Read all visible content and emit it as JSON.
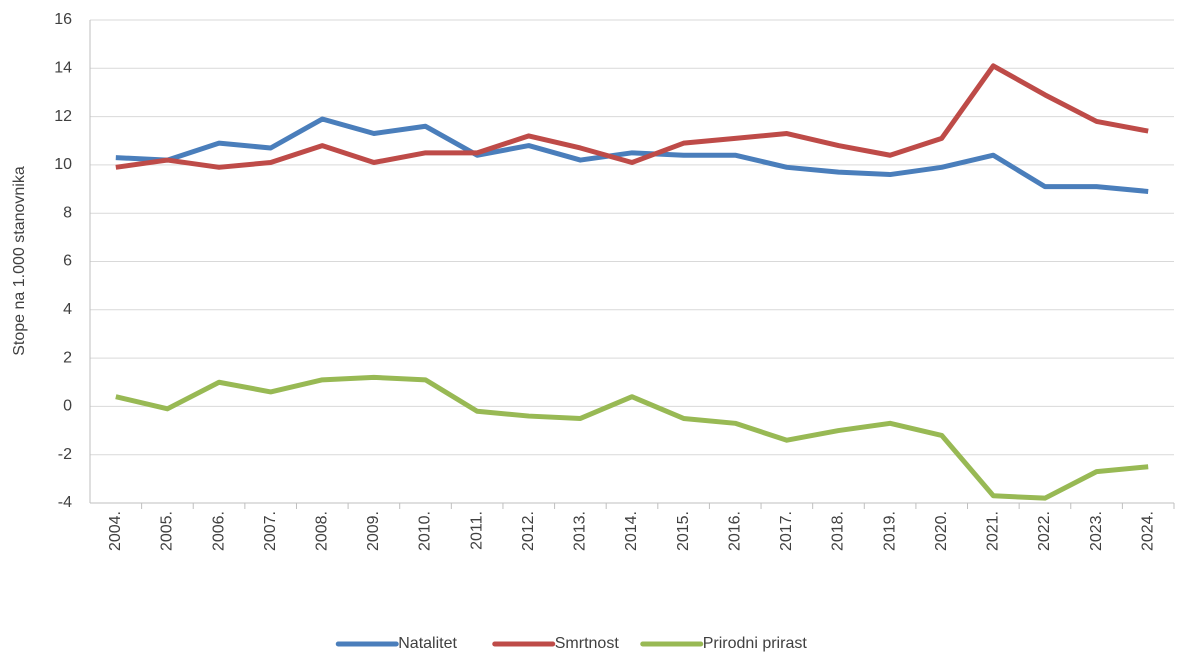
{
  "chart_data": {
    "type": "line",
    "y_label": "Stope na 1.000 stanovnika",
    "categories": [
      "2004.",
      "2005.",
      "2006.",
      "2007.",
      "2008.",
      "2009.",
      "2010.",
      "2011.",
      "2012.",
      "2013.",
      "2014.",
      "2015.",
      "2016.",
      "2017.",
      "2018.",
      "2019.",
      "2020.",
      "2021.",
      "2022.",
      "2023.",
      "2024."
    ],
    "series": [
      {
        "name": "Natalitet",
        "color": "#4a7ebb",
        "values": [
          10.3,
          10.2,
          10.9,
          10.7,
          11.9,
          11.3,
          11.6,
          10.4,
          10.8,
          10.2,
          10.5,
          10.4,
          10.4,
          9.9,
          9.7,
          9.6,
          9.9,
          10.4,
          9.1,
          9.1,
          8.9
        ]
      },
      {
        "name": "Smrtnost",
        "color": "#be4b48",
        "values": [
          9.9,
          10.2,
          9.9,
          10.1,
          10.8,
          10.1,
          10.5,
          10.5,
          11.2,
          10.7,
          10.1,
          10.9,
          11.1,
          11.3,
          10.8,
          10.4,
          11.1,
          14.1,
          12.9,
          11.8,
          11.4
        ]
      },
      {
        "name": "Prirodni prirast",
        "color": "#98b954",
        "values": [
          0.4,
          -0.1,
          1.0,
          0.6,
          1.1,
          1.2,
          1.1,
          -0.2,
          -0.4,
          -0.5,
          0.4,
          -0.5,
          -0.7,
          -1.4,
          -1.0,
          -0.7,
          -1.2,
          -3.7,
          -3.8,
          -2.7,
          -2.5
        ]
      }
    ],
    "ylim": [
      -4,
      16
    ],
    "yticks": [
      -4,
      -2,
      0,
      2,
      4,
      6,
      8,
      10,
      12,
      14,
      16
    ],
    "grid": true,
    "legend": "bottom"
  }
}
